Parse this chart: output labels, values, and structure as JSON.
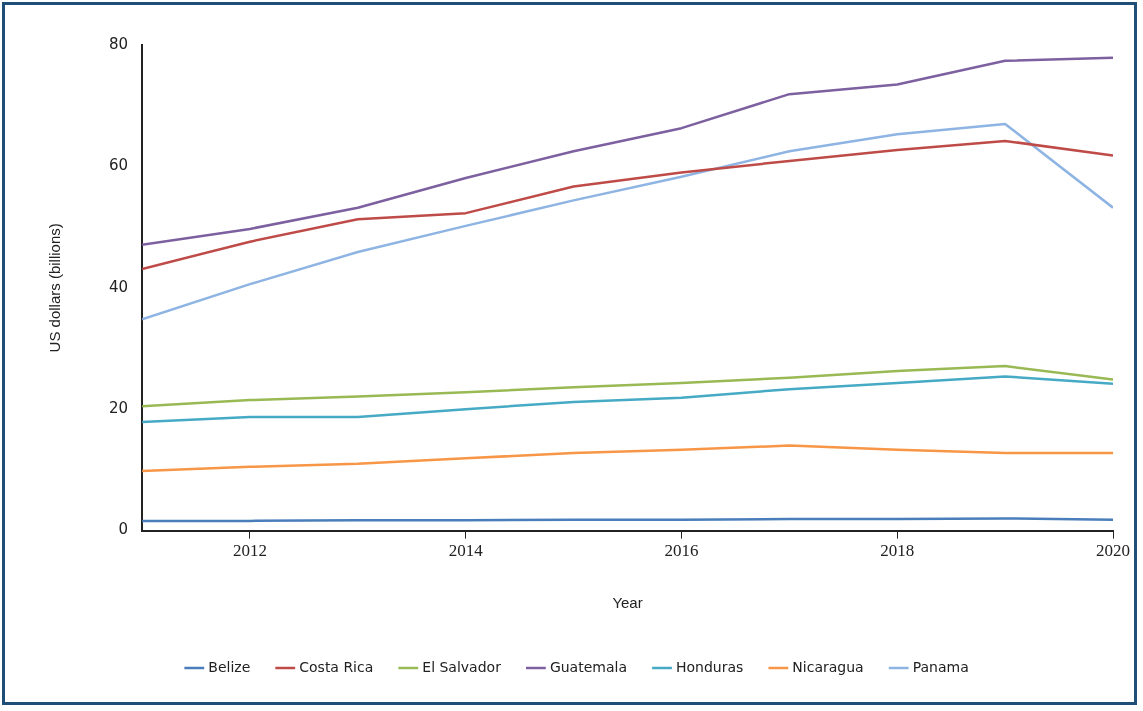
{
  "chart_data": {
    "type": "line",
    "xlabel": "Year",
    "ylabel": "US dollars (billions)",
    "x": [
      2011,
      2012,
      2013,
      2014,
      2015,
      2016,
      2017,
      2018,
      2019,
      2020
    ],
    "xlim": [
      2011,
      2020
    ],
    "xticks": [
      2012,
      2014,
      2016,
      2018,
      2020
    ],
    "ylim": [
      0,
      80
    ],
    "yticks": [
      0,
      20,
      40,
      60,
      80
    ],
    "grid": false,
    "legend": "bottom",
    "marker": "none",
    "line_style": "solid",
    "series": [
      {
        "name": "Belize",
        "color": "#4a7ebb",
        "values": [
          1.6,
          1.6,
          1.7,
          1.7,
          1.8,
          1.8,
          1.9,
          1.9,
          2.0,
          1.8
        ]
      },
      {
        "name": "Costa Rica",
        "color": "#be4b48",
        "values": [
          43.1,
          47.6,
          51.3,
          52.3,
          56.7,
          59.0,
          60.9,
          62.7,
          64.2,
          61.8
        ]
      },
      {
        "name": "El Salvador",
        "color": "#98b954",
        "values": [
          20.5,
          21.5,
          22.1,
          22.8,
          23.6,
          24.3,
          25.2,
          26.3,
          27.1,
          24.9
        ]
      },
      {
        "name": "Guatemala",
        "color": "#7d60a0",
        "values": [
          47.1,
          49.7,
          53.2,
          58.1,
          62.5,
          66.3,
          71.9,
          73.5,
          77.4,
          77.9
        ]
      },
      {
        "name": "Honduras",
        "color": "#46aac5",
        "values": [
          17.9,
          18.7,
          18.7,
          20.0,
          21.2,
          21.9,
          23.3,
          24.3,
          25.4,
          24.2
        ]
      },
      {
        "name": "Nicaragua",
        "color": "#f79646",
        "values": [
          9.8,
          10.5,
          11.0,
          11.9,
          12.8,
          13.3,
          14.0,
          13.3,
          12.8,
          12.8
        ]
      },
      {
        "name": "Panama",
        "color": "#8eb4e3",
        "values": [
          34.8,
          40.6,
          45.9,
          50.2,
          54.4,
          58.3,
          62.5,
          65.3,
          67.0,
          53.2
        ]
      }
    ]
  }
}
